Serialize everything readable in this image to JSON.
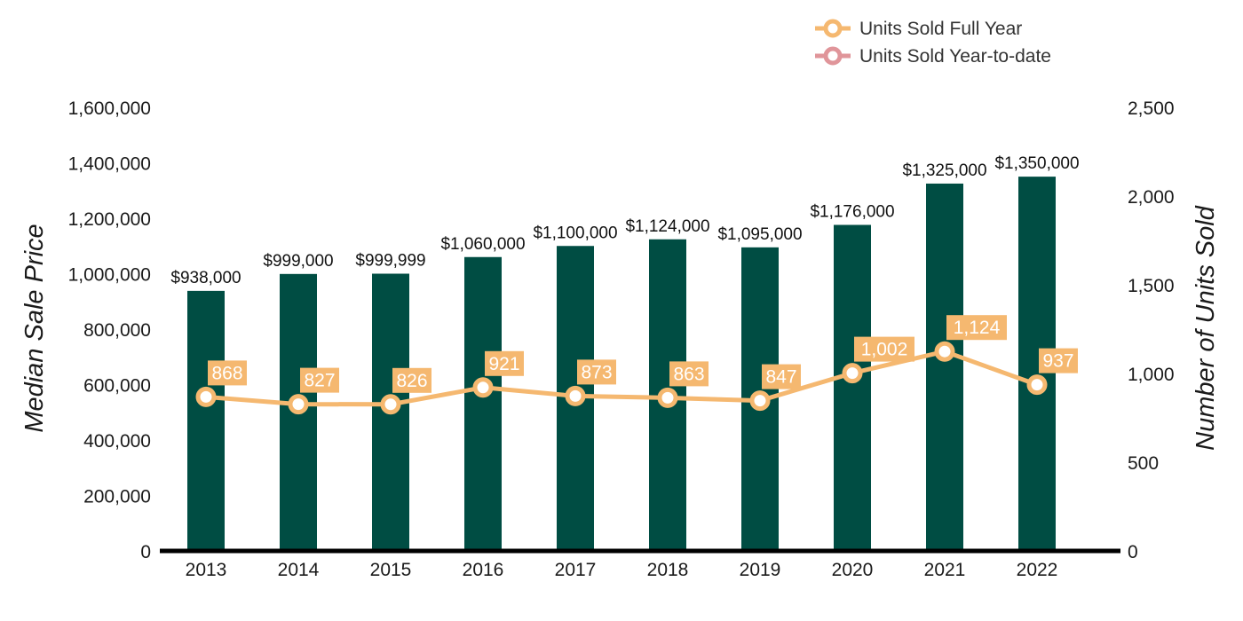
{
  "chart_data": {
    "type": "bar",
    "categories": [
      "2013",
      "2014",
      "2015",
      "2016",
      "2017",
      "2018",
      "2019",
      "2020",
      "2021",
      "2022"
    ],
    "series": [
      {
        "name": "Median Sale Price",
        "type": "bar",
        "axis": "left",
        "values": [
          938000,
          999000,
          999999,
          1060000,
          1100000,
          1124000,
          1095000,
          1176000,
          1325000,
          1350000
        ],
        "labels": [
          "$938,000",
          "$999,000",
          "$999,999",
          "$1,060,000",
          "$1,100,000",
          "$1,124,000",
          "$1,095,000",
          "$1,176,000",
          "$1,325,000",
          "$1,350,000"
        ],
        "color": "#004d43"
      },
      {
        "name": "Units Sold Full Year",
        "type": "line",
        "axis": "right",
        "values": [
          868,
          827,
          826,
          921,
          873,
          863,
          847,
          1002,
          1124,
          937
        ],
        "labels": [
          "868",
          "827",
          "826",
          "921",
          "873",
          "863",
          "847",
          "1,002",
          "1,124",
          "937"
        ],
        "color": "#f5b870"
      }
    ],
    "legend": [
      {
        "name": "Units Sold Full Year",
        "color": "#f5b870"
      },
      {
        "name": "Units Sold Year-to-date",
        "color": "#e0959a"
      }
    ],
    "legend_position": "top-right",
    "ylabel": "Median Sale Price",
    "y2label": "Number of Units Sold",
    "ylim": [
      0,
      1600000
    ],
    "y2lim": [
      0,
      2500
    ],
    "yticks": [
      "1,600,000",
      "1,400,000",
      "1,200,000",
      "1,000,000",
      "800,000",
      "600,000",
      "400,000",
      "200,000",
      "0"
    ],
    "y2ticks": [
      "2,500",
      "2,000",
      "1,500",
      "1,000",
      "500",
      "0"
    ],
    "grid": false
  }
}
